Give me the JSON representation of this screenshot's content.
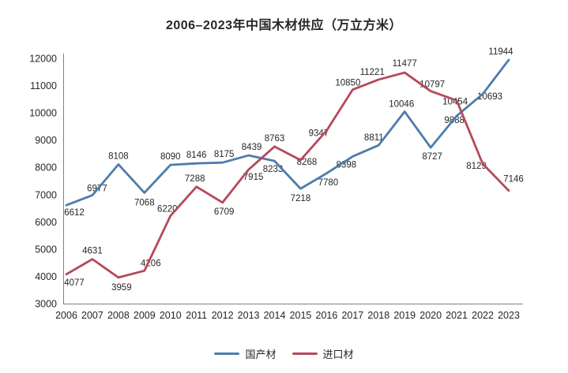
{
  "title": "2006–2023年中国木材供应（万立方米）",
  "chart_data": {
    "type": "line",
    "title": "2006–2023年中国木材供应（万立方米）",
    "x": [
      "2006",
      "2007",
      "2008",
      "2009",
      "2010",
      "2011",
      "2012",
      "2013",
      "2014",
      "2015",
      "2016",
      "2017",
      "2018",
      "2019",
      "2020",
      "2021",
      "2022",
      "2023"
    ],
    "series": [
      {
        "name": "国产材",
        "color": "#4d7cac",
        "values": [
          6612,
          6977,
          8108,
          7068,
          8090,
          8146,
          8175,
          8439,
          8233,
          7218,
          7780,
          8398,
          8811,
          10046,
          8727,
          9888,
          10693,
          11944
        ],
        "label_offsets": [
          [
            10,
            13
          ],
          [
            6,
            -5
          ],
          [
            0,
            -7
          ],
          [
            0,
            16
          ],
          [
            0,
            -7
          ],
          [
            0,
            -7
          ],
          [
            2,
            -7
          ],
          [
            4,
            -7
          ],
          [
            -2,
            14
          ],
          [
            0,
            16
          ],
          [
            2,
            15
          ],
          [
            -8,
            14
          ],
          [
            -6,
            -6
          ],
          [
            -4,
            -6
          ],
          [
            2,
            15
          ],
          [
            -3,
            9
          ],
          [
            9,
            7
          ],
          [
            -10,
            -7
          ]
        ]
      },
      {
        "name": "进口材",
        "color": "#b5495b",
        "values": [
          4077,
          4631,
          3959,
          4206,
          6220,
          7288,
          6709,
          7915,
          8763,
          8268,
          9347,
          10850,
          11221,
          11477,
          10797,
          10454,
          8129,
          7146
        ],
        "label_offsets": [
          [
            10,
            14
          ],
          [
            0,
            -7
          ],
          [
            4,
            16
          ],
          [
            8,
            -6
          ],
          [
            -4,
            -5
          ],
          [
            -2,
            -7
          ],
          [
            2,
            15
          ],
          [
            6,
            13
          ],
          [
            0,
            -7
          ],
          [
            8,
            6
          ],
          [
            -10,
            7
          ],
          [
            -6,
            -5
          ],
          [
            -8,
            -6
          ],
          [
            0,
            -8
          ],
          [
            2,
            -5
          ],
          [
            -2,
            5
          ],
          [
            -8,
            6
          ],
          [
            6,
            -11
          ]
        ]
      }
    ],
    "ylim": [
      3000,
      12000
    ],
    "ytick_step": 1000,
    "grid": false,
    "data_labels": true,
    "legend_position": "bottom",
    "axis_color": "#808080",
    "label_color": "#262626"
  }
}
